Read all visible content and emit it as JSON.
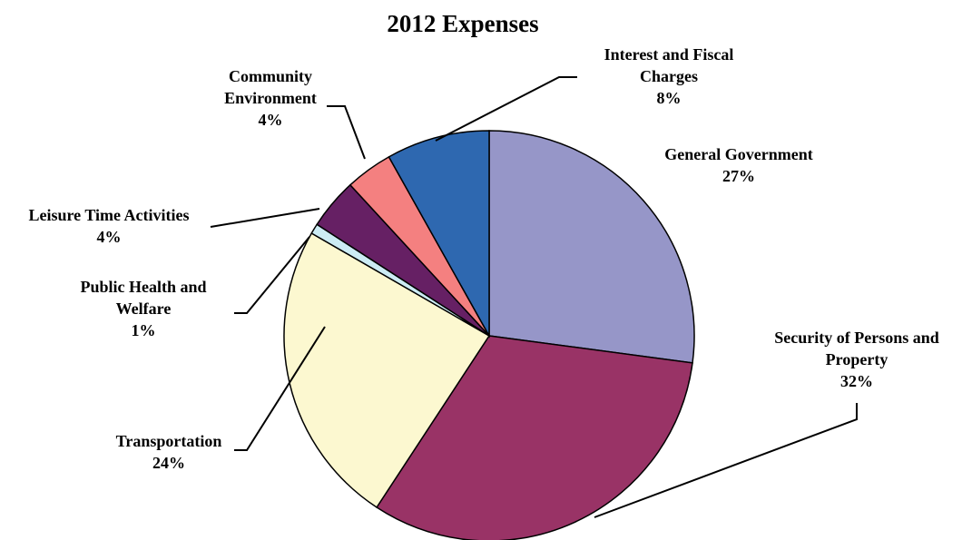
{
  "chart_data": {
    "type": "pie",
    "title": "2012 Expenses",
    "slices": [
      {
        "name": "General Government",
        "lines": [
          "General Government"
        ],
        "pct_label": "27%",
        "value": 27,
        "color": "#9696C8"
      },
      {
        "name": "Security of Persons and Property",
        "lines": [
          "Security of Persons and",
          "Property"
        ],
        "pct_label": "32%",
        "value": 32,
        "color": "#993366"
      },
      {
        "name": "Transportation",
        "lines": [
          "Transportation"
        ],
        "pct_label": "24%",
        "value": 24,
        "color": "#FCF8D0"
      },
      {
        "name": "Public Health and Welfare",
        "lines": [
          "Public Health and",
          "Welfare"
        ],
        "pct_label": "1%",
        "value": 0.8,
        "color": "#CCECF4"
      },
      {
        "name": "Leisure Time Activities",
        "lines": [
          "Leisure Time Activities"
        ],
        "pct_label": "4%",
        "value": 4,
        "color": "#662064"
      },
      {
        "name": "Community Environment",
        "lines": [
          "Community",
          "Environment"
        ],
        "pct_label": "4%",
        "value": 3.7,
        "color": "#F48080"
      },
      {
        "name": "Interest and Fiscal Charges",
        "lines": [
          "Interest and Fiscal",
          "Charges"
        ],
        "pct_label": "8%",
        "value": 8.1,
        "color": "#2E68B0"
      }
    ]
  }
}
